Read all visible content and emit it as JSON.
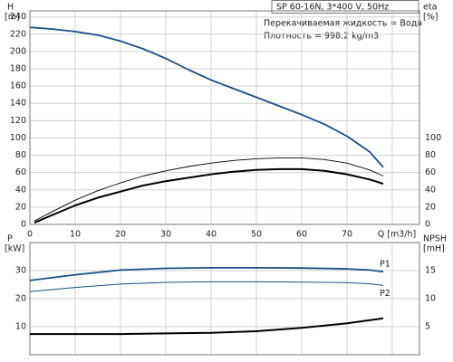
{
  "chart_data": [
    {
      "type": "line",
      "annotations": [
        "SP 60-16N, 3*400 V, 50Hz",
        "Перекачиваемая жидкость = Вода",
        "Плотность = 998.2 kg/m3"
      ],
      "ylabel": "H",
      "yunit": "[m]",
      "y2label": "eta",
      "y2unit": "[%]",
      "xlim": [
        0,
        86
      ],
      "xticks": [
        0,
        10,
        20,
        30,
        40,
        50,
        60,
        70,
        {
          "value": 80,
          "label": "Q [m3/h]"
        }
      ],
      "ylim": [
        0,
        247
      ],
      "yticks": [
        0,
        20,
        40,
        60,
        80,
        100,
        120,
        140,
        160,
        180,
        200,
        220,
        240
      ],
      "y2lim": [
        0,
        247
      ],
      "y2ticks": [
        0,
        20,
        40,
        60,
        80,
        100
      ],
      "grid": true,
      "series": [
        {
          "color": "#1f4f82",
          "line_width": 1.8,
          "x": [
            0,
            5,
            10,
            15,
            20,
            25,
            30,
            35,
            40,
            45,
            50,
            55,
            60,
            65,
            70,
            75,
            78
          ],
          "values": [
            228,
            226,
            223,
            219,
            212,
            203,
            192,
            179,
            167,
            157,
            147,
            137,
            127,
            116,
            102,
            84,
            66
          ]
        },
        {
          "color": "#000000",
          "line_width": 0.9,
          "axis": "y2",
          "x": [
            1,
            5,
            10,
            15,
            20,
            25,
            30,
            35,
            40,
            45,
            50,
            55,
            57,
            60,
            65,
            70,
            75,
            78
          ],
          "values": [
            4,
            15,
            28,
            39,
            48,
            56,
            62,
            67,
            71,
            74,
            76,
            77,
            77,
            77,
            75,
            71,
            63,
            56
          ]
        },
        {
          "color": "#000000",
          "line_width": 2,
          "axis": "y2",
          "x": [
            1,
            5,
            10,
            15,
            20,
            25,
            30,
            35,
            40,
            45,
            50,
            55,
            57,
            60,
            65,
            70,
            75,
            78
          ],
          "values": [
            2,
            11,
            22,
            31,
            38,
            45,
            50,
            54,
            58,
            61,
            63,
            64,
            64,
            64,
            62,
            58,
            52,
            47
          ]
        }
      ]
    },
    {
      "type": "line",
      "ylabel": "P",
      "yunit": "[kW]",
      "y2label": "NPSH",
      "y2unit": "[mH]",
      "ylim": [
        0,
        40
      ],
      "yticks": [
        10,
        20,
        30
      ],
      "y2lim": [
        0,
        20
      ],
      "y2ticks": [
        5,
        10,
        15
      ],
      "grid": true,
      "series": [
        {
          "name": "P1",
          "color": "#1f4f82",
          "line_width": 1.8,
          "x": [
            0,
            10,
            20,
            30,
            40,
            50,
            60,
            70,
            75,
            78
          ],
          "values": [
            26.5,
            28.5,
            30.2,
            30.8,
            31,
            31,
            30.9,
            30.6,
            30.2,
            29.6
          ]
        },
        {
          "name": "P2",
          "color": "#1f4f82",
          "line_width": 1,
          "x": [
            0,
            10,
            20,
            30,
            40,
            50,
            60,
            70,
            75,
            78
          ],
          "values": [
            22.5,
            24,
            25.2,
            25.8,
            26,
            26,
            25.9,
            25.7,
            25.3,
            24.7
          ]
        },
        {
          "color": "#000000",
          "line_width": 2,
          "axis": "y2",
          "x": [
            0,
            13,
            20,
            30,
            40,
            50,
            60,
            70,
            78
          ],
          "values": [
            3.7,
            3.7,
            3.7,
            3.8,
            3.9,
            4.2,
            4.8,
            5.6,
            6.5
          ]
        }
      ]
    }
  ]
}
